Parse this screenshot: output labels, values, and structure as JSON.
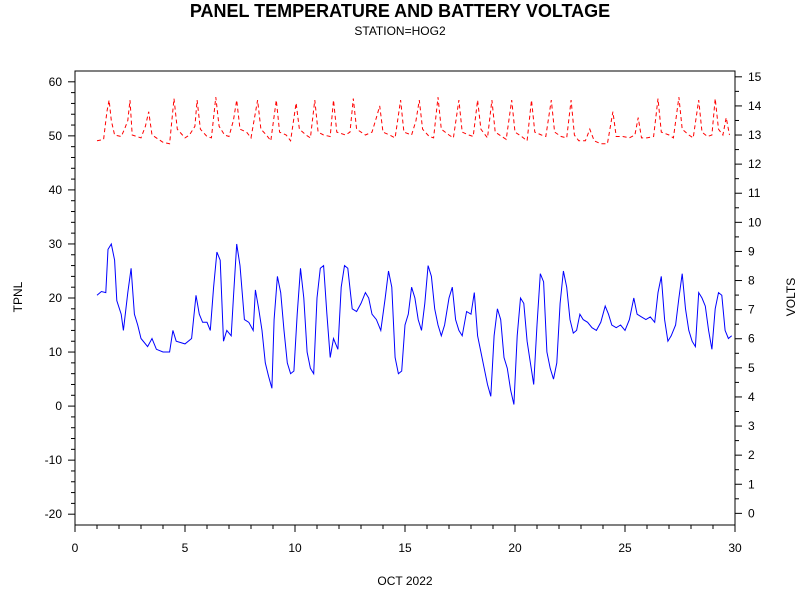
{
  "chart_data": {
    "type": "line",
    "title": "PANEL TEMPERATURE AND BATTERY VOLTAGE",
    "subtitle": "STATION=HOG2",
    "xlabel": "OCT 2022",
    "ylabel_left": "TPNL",
    "ylabel_right": "VOLTS",
    "xlim": [
      0,
      30
    ],
    "ylim_left": [
      -22,
      62
    ],
    "ylim_right": [
      -0.4,
      15.2
    ],
    "x_ticks": [
      0,
      5,
      10,
      15,
      20,
      25,
      30
    ],
    "y_left_ticks": [
      -20,
      -10,
      0,
      10,
      20,
      30,
      40,
      50,
      60
    ],
    "y_right_ticks": [
      0,
      1,
      2,
      3,
      4,
      5,
      6,
      7,
      8,
      9,
      10,
      11,
      12,
      13,
      14,
      15
    ],
    "grid": false,
    "series": [
      {
        "name": "",
        "axis": "left",
        "color": "#0000ff",
        "style": "solid",
        "points": [
          [
            1.0,
            20.5
          ],
          [
            1.2,
            21.2
          ],
          [
            1.4,
            21.0
          ],
          [
            1.5,
            29.0
          ],
          [
            1.65,
            30.0
          ],
          [
            1.8,
            27.0
          ],
          [
            1.9,
            19.5
          ],
          [
            2.1,
            17.0
          ],
          [
            2.2,
            14.0
          ],
          [
            2.4,
            21.0
          ],
          [
            2.55,
            25.5
          ],
          [
            2.7,
            17.0
          ],
          [
            2.85,
            15.0
          ],
          [
            3.0,
            12.5
          ],
          [
            3.3,
            11.0
          ],
          [
            3.5,
            12.5
          ],
          [
            3.7,
            10.5
          ],
          [
            4.0,
            10.0
          ],
          [
            4.3,
            10.0
          ],
          [
            4.45,
            14.0
          ],
          [
            4.6,
            12.0
          ],
          [
            5.0,
            11.5
          ],
          [
            5.3,
            12.5
          ],
          [
            5.5,
            20.5
          ],
          [
            5.65,
            17.0
          ],
          [
            5.8,
            15.5
          ],
          [
            6.0,
            15.5
          ],
          [
            6.15,
            14.0
          ],
          [
            6.3,
            22.0
          ],
          [
            6.45,
            28.5
          ],
          [
            6.6,
            27.0
          ],
          [
            6.75,
            12.0
          ],
          [
            6.9,
            14.0
          ],
          [
            7.1,
            13.0
          ],
          [
            7.2,
            20.0
          ],
          [
            7.35,
            30.0
          ],
          [
            7.5,
            26.0
          ],
          [
            7.7,
            16.0
          ],
          [
            7.9,
            15.5
          ],
          [
            8.1,
            14.0
          ],
          [
            8.2,
            21.5
          ],
          [
            8.35,
            18.0
          ],
          [
            8.5,
            14.0
          ],
          [
            8.65,
            8.0
          ],
          [
            8.8,
            5.5
          ],
          [
            8.95,
            3.3
          ],
          [
            9.05,
            16.0
          ],
          [
            9.2,
            24.0
          ],
          [
            9.35,
            21.0
          ],
          [
            9.5,
            14.0
          ],
          [
            9.65,
            8.0
          ],
          [
            9.8,
            6.0
          ],
          [
            9.95,
            6.5
          ],
          [
            10.1,
            17.0
          ],
          [
            10.25,
            25.5
          ],
          [
            10.4,
            20.0
          ],
          [
            10.55,
            10.0
          ],
          [
            10.7,
            7.0
          ],
          [
            10.85,
            6.0
          ],
          [
            11.0,
            20.0
          ],
          [
            11.15,
            25.5
          ],
          [
            11.3,
            26.0
          ],
          [
            11.45,
            17.0
          ],
          [
            11.6,
            9.0
          ],
          [
            11.75,
            12.5
          ],
          [
            11.95,
            10.5
          ],
          [
            12.1,
            22.0
          ],
          [
            12.25,
            26.0
          ],
          [
            12.4,
            25.5
          ],
          [
            12.6,
            18.0
          ],
          [
            12.8,
            17.5
          ],
          [
            13.0,
            19.0
          ],
          [
            13.2,
            21.0
          ],
          [
            13.35,
            20.0
          ],
          [
            13.5,
            17.0
          ],
          [
            13.7,
            16.0
          ],
          [
            13.9,
            14.0
          ],
          [
            14.1,
            20.0
          ],
          [
            14.25,
            25.0
          ],
          [
            14.4,
            22.0
          ],
          [
            14.55,
            9.0
          ],
          [
            14.7,
            6.0
          ],
          [
            14.85,
            6.5
          ],
          [
            15.0,
            15.0
          ],
          [
            15.15,
            17.0
          ],
          [
            15.3,
            22.0
          ],
          [
            15.45,
            20.0
          ],
          [
            15.6,
            16.0
          ],
          [
            15.75,
            14.0
          ],
          [
            15.9,
            19.0
          ],
          [
            16.05,
            26.0
          ],
          [
            16.2,
            24.0
          ],
          [
            16.35,
            18.0
          ],
          [
            16.5,
            15.0
          ],
          [
            16.65,
            13.0
          ],
          [
            16.8,
            15.0
          ],
          [
            17.0,
            20.0
          ],
          [
            17.15,
            22.0
          ],
          [
            17.3,
            16.0
          ],
          [
            17.45,
            14.0
          ],
          [
            17.6,
            13.0
          ],
          [
            17.8,
            17.5
          ],
          [
            18.0,
            17.0
          ],
          [
            18.15,
            21.0
          ],
          [
            18.3,
            13.0
          ],
          [
            18.45,
            10.0
          ],
          [
            18.6,
            7.0
          ],
          [
            18.75,
            4.0
          ],
          [
            18.9,
            1.8
          ],
          [
            19.05,
            13.0
          ],
          [
            19.2,
            18.0
          ],
          [
            19.35,
            16.0
          ],
          [
            19.5,
            9.0
          ],
          [
            19.65,
            7.0
          ],
          [
            19.8,
            3.0
          ],
          [
            19.95,
            0.3
          ],
          [
            20.1,
            13.0
          ],
          [
            20.25,
            20.0
          ],
          [
            20.4,
            19.0
          ],
          [
            20.55,
            12.0
          ],
          [
            20.7,
            8.0
          ],
          [
            20.85,
            4.0
          ],
          [
            21.0,
            15.0
          ],
          [
            21.15,
            24.5
          ],
          [
            21.3,
            23.0
          ],
          [
            21.45,
            10.0
          ],
          [
            21.6,
            7.0
          ],
          [
            21.75,
            5.0
          ],
          [
            21.9,
            8.0
          ],
          [
            22.05,
            19.0
          ],
          [
            22.2,
            25.0
          ],
          [
            22.35,
            22.0
          ],
          [
            22.5,
            16.0
          ],
          [
            22.65,
            13.5
          ],
          [
            22.8,
            14.0
          ],
          [
            22.95,
            17.0
          ],
          [
            23.1,
            16.0
          ],
          [
            23.3,
            15.5
          ],
          [
            23.5,
            14.5
          ],
          [
            23.7,
            14.0
          ],
          [
            23.9,
            15.5
          ],
          [
            24.1,
            18.5
          ],
          [
            24.25,
            17.0
          ],
          [
            24.4,
            15.0
          ],
          [
            24.6,
            14.5
          ],
          [
            24.8,
            15.0
          ],
          [
            25.0,
            14.0
          ],
          [
            25.2,
            16.0
          ],
          [
            25.4,
            20.0
          ],
          [
            25.55,
            17.0
          ],
          [
            25.75,
            16.5
          ],
          [
            25.95,
            16.0
          ],
          [
            26.15,
            16.5
          ],
          [
            26.35,
            15.5
          ],
          [
            26.5,
            21.0
          ],
          [
            26.65,
            24.0
          ],
          [
            26.8,
            16.0
          ],
          [
            26.95,
            12.0
          ],
          [
            27.1,
            13.0
          ],
          [
            27.3,
            15.0
          ],
          [
            27.45,
            20.0
          ],
          [
            27.6,
            24.5
          ],
          [
            27.75,
            18.0
          ],
          [
            27.9,
            14.0
          ],
          [
            28.05,
            12.0
          ],
          [
            28.2,
            11.0
          ],
          [
            28.35,
            21.0
          ],
          [
            28.5,
            20.0
          ],
          [
            28.65,
            18.5
          ],
          [
            28.8,
            14.0
          ],
          [
            28.95,
            10.5
          ],
          [
            29.1,
            18.0
          ],
          [
            29.25,
            21.0
          ],
          [
            29.4,
            20.5
          ],
          [
            29.55,
            14.0
          ],
          [
            29.7,
            12.5
          ],
          [
            29.85,
            13.0
          ]
        ]
      },
      {
        "name": "",
        "axis": "right",
        "color": "#ff0000",
        "style": "dashed",
        "points": [
          [
            1.0,
            12.8
          ],
          [
            1.3,
            12.85
          ],
          [
            1.45,
            13.8
          ],
          [
            1.55,
            14.2
          ],
          [
            1.65,
            13.5
          ],
          [
            1.8,
            13.0
          ],
          [
            2.1,
            12.95
          ],
          [
            2.25,
            13.2
          ],
          [
            2.4,
            13.5
          ],
          [
            2.5,
            14.2
          ],
          [
            2.6,
            13.0
          ],
          [
            3.0,
            12.9
          ],
          [
            3.2,
            13.3
          ],
          [
            3.35,
            13.8
          ],
          [
            3.5,
            13.0
          ],
          [
            4.0,
            12.75
          ],
          [
            4.3,
            12.7
          ],
          [
            4.5,
            14.25
          ],
          [
            4.65,
            13.2
          ],
          [
            5.0,
            12.9
          ],
          [
            5.2,
            13.0
          ],
          [
            5.45,
            13.3
          ],
          [
            5.55,
            14.2
          ],
          [
            5.7,
            13.2
          ],
          [
            6.0,
            12.95
          ],
          [
            6.2,
            12.9
          ],
          [
            6.4,
            14.3
          ],
          [
            6.55,
            13.3
          ],
          [
            6.8,
            13.0
          ],
          [
            7.0,
            12.95
          ],
          [
            7.2,
            13.5
          ],
          [
            7.35,
            14.2
          ],
          [
            7.5,
            13.2
          ],
          [
            7.8,
            13.1
          ],
          [
            8.0,
            12.9
          ],
          [
            8.3,
            14.2
          ],
          [
            8.45,
            13.2
          ],
          [
            8.7,
            13.0
          ],
          [
            8.9,
            12.8
          ],
          [
            9.15,
            14.2
          ],
          [
            9.3,
            13.1
          ],
          [
            9.6,
            13.0
          ],
          [
            9.8,
            12.8
          ],
          [
            10.05,
            14.1
          ],
          [
            10.2,
            13.2
          ],
          [
            10.5,
            13.0
          ],
          [
            10.7,
            12.9
          ],
          [
            10.9,
            14.2
          ],
          [
            11.05,
            13.1
          ],
          [
            11.3,
            13.0
          ],
          [
            11.6,
            12.95
          ],
          [
            11.75,
            14.2
          ],
          [
            11.9,
            13.1
          ],
          [
            12.3,
            13.0
          ],
          [
            12.5,
            13.1
          ],
          [
            12.65,
            14.25
          ],
          [
            12.8,
            13.2
          ],
          [
            13.2,
            13.0
          ],
          [
            13.5,
            13.1
          ],
          [
            13.7,
            13.6
          ],
          [
            13.85,
            14.0
          ],
          [
            14.0,
            13.1
          ],
          [
            14.3,
            13.0
          ],
          [
            14.55,
            12.9
          ],
          [
            14.8,
            14.2
          ],
          [
            14.95,
            13.1
          ],
          [
            15.3,
            13.0
          ],
          [
            15.5,
            13.5
          ],
          [
            15.65,
            14.2
          ],
          [
            15.8,
            13.2
          ],
          [
            16.1,
            12.95
          ],
          [
            16.3,
            12.9
          ],
          [
            16.5,
            14.3
          ],
          [
            16.65,
            13.2
          ],
          [
            17.0,
            13.0
          ],
          [
            17.2,
            12.9
          ],
          [
            17.45,
            14.2
          ],
          [
            17.6,
            13.1
          ],
          [
            17.9,
            13.0
          ],
          [
            18.1,
            12.95
          ],
          [
            18.3,
            14.2
          ],
          [
            18.45,
            13.2
          ],
          [
            18.75,
            12.9
          ],
          [
            18.95,
            14.2
          ],
          [
            19.1,
            13.1
          ],
          [
            19.4,
            12.95
          ],
          [
            19.6,
            12.85
          ],
          [
            19.85,
            14.2
          ],
          [
            20.0,
            13.1
          ],
          [
            20.3,
            12.95
          ],
          [
            20.55,
            12.8
          ],
          [
            20.75,
            14.2
          ],
          [
            20.9,
            13.1
          ],
          [
            21.2,
            13.0
          ],
          [
            21.4,
            12.95
          ],
          [
            21.65,
            14.2
          ],
          [
            21.8,
            13.1
          ],
          [
            22.1,
            12.95
          ],
          [
            22.35,
            12.9
          ],
          [
            22.55,
            14.2
          ],
          [
            22.7,
            13.0
          ],
          [
            22.9,
            12.8
          ],
          [
            23.2,
            12.8
          ],
          [
            23.4,
            13.2
          ],
          [
            23.6,
            12.8
          ],
          [
            23.9,
            12.7
          ],
          [
            24.2,
            12.7
          ],
          [
            24.45,
            13.8
          ],
          [
            24.6,
            12.95
          ],
          [
            24.9,
            12.95
          ],
          [
            25.2,
            12.9
          ],
          [
            25.45,
            13.0
          ],
          [
            25.6,
            13.6
          ],
          [
            25.75,
            12.9
          ],
          [
            26.0,
            12.9
          ],
          [
            26.3,
            12.95
          ],
          [
            26.5,
            14.25
          ],
          [
            26.65,
            13.1
          ],
          [
            27.0,
            13.0
          ],
          [
            27.2,
            12.9
          ],
          [
            27.45,
            14.3
          ],
          [
            27.6,
            13.2
          ],
          [
            27.9,
            13.0
          ],
          [
            28.1,
            12.9
          ],
          [
            28.35,
            14.2
          ],
          [
            28.5,
            13.1
          ],
          [
            28.75,
            12.95
          ],
          [
            28.95,
            13.0
          ],
          [
            29.1,
            14.25
          ],
          [
            29.25,
            13.2
          ],
          [
            29.45,
            13.0
          ],
          [
            29.6,
            13.6
          ],
          [
            29.75,
            13.0
          ]
        ]
      }
    ]
  }
}
